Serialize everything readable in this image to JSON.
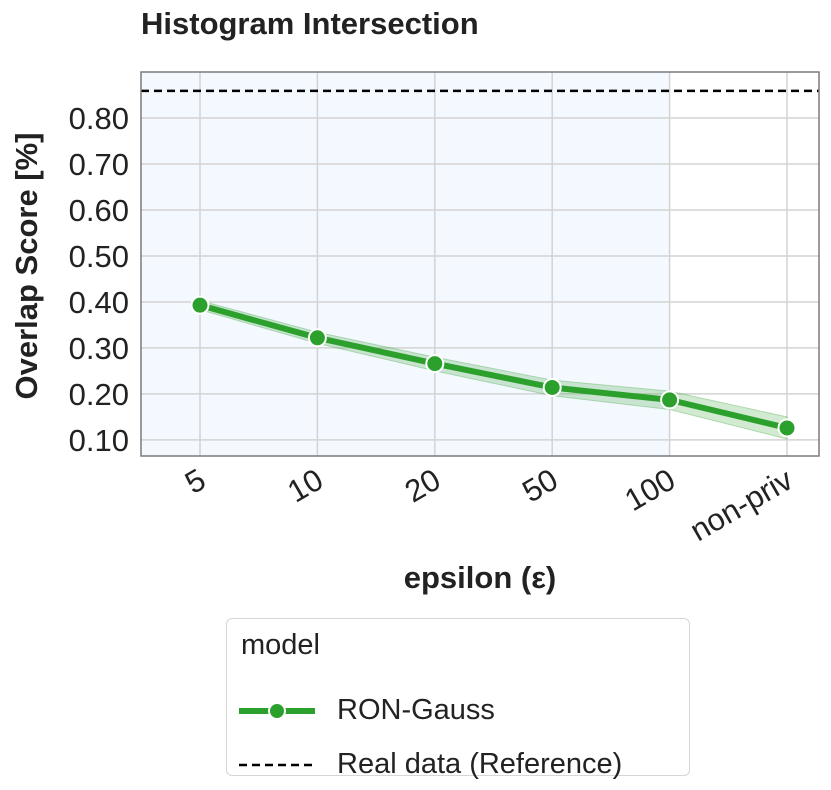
{
  "chart_data": {
    "type": "line",
    "title": "Histogram Intersection",
    "xlabel": "epsilon (ε)",
    "ylabel": "Overlap Score [%]",
    "categories": [
      "5",
      "10",
      "20",
      "50",
      "100",
      "non-priv"
    ],
    "ylim": [
      0.065,
      0.9
    ],
    "yticks": [
      "0.10",
      "0.20",
      "0.30",
      "0.40",
      "0.50",
      "0.60",
      "0.70",
      "0.80"
    ],
    "grid": true,
    "shaded_region": {
      "from": "5",
      "to": "100",
      "color": "#f4f8ff"
    },
    "series": [
      {
        "name": "RON-Gauss",
        "values": [
          0.393,
          0.322,
          0.266,
          0.214,
          0.187,
          0.126
        ],
        "band_lower": [
          0.383,
          0.31,
          0.25,
          0.196,
          0.166,
          0.102
        ],
        "band_upper": [
          0.403,
          0.334,
          0.28,
          0.23,
          0.206,
          0.15
        ],
        "color": "#2ca02c",
        "marker": "circle"
      }
    ],
    "reference_lines": [
      {
        "name": "Real data (Reference)",
        "y": 0.859,
        "style": "dashed",
        "color": "#000000"
      }
    ],
    "legend": {
      "title": "model",
      "placement": "below",
      "entries": [
        "RON-Gauss",
        "Real data (Reference)"
      ]
    }
  }
}
